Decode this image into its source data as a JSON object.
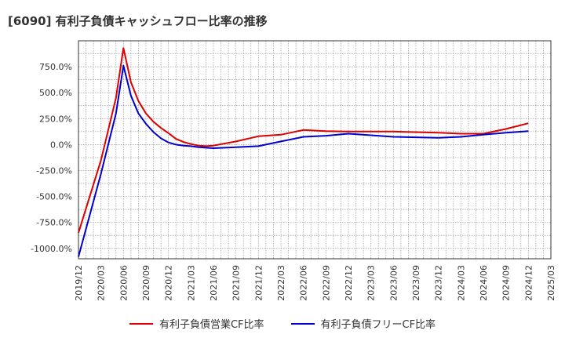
{
  "chart_data": {
    "type": "line",
    "title": "[6090]  有利子負債キャッシュフロー比率の推移",
    "xlabel": "",
    "ylabel": "",
    "ylim": [
      -1100,
      1000
    ],
    "yticks": [
      750,
      500,
      250,
      0,
      -250,
      -500,
      -750,
      -1000
    ],
    "ytick_labels": [
      "750.0%",
      "500.0%",
      "250.0%",
      "0.0%",
      "-250.0%",
      "-500.0%",
      "-750.0%",
      "-1000.0%"
    ],
    "xticks": [
      "2019/12",
      "2020/03",
      "2020/06",
      "2020/09",
      "2020/12",
      "2021/03",
      "2021/06",
      "2021/09",
      "2021/12",
      "2022/03",
      "2022/06",
      "2022/09",
      "2022/12",
      "2023/03",
      "2023/06",
      "2023/09",
      "2023/12",
      "2024/03",
      "2024/06",
      "2024/09",
      "2024/12",
      "2025/03"
    ],
    "grid": true,
    "legend_position": "bottom",
    "series": [
      {
        "name": "有利子負債営業CF比率",
        "color": "#dd0000",
        "x": [
          "2019/12",
          "2020/03",
          "2020/05",
          "2020/06",
          "2020/07",
          "2020/08",
          "2020/09",
          "2020/10",
          "2020/11",
          "2020/12",
          "2021/01",
          "2021/02",
          "2021/03",
          "2021/04",
          "2021/05",
          "2021/06",
          "2021/09",
          "2021/12",
          "2022/03",
          "2022/06",
          "2022/09",
          "2022/12",
          "2023/03",
          "2023/06",
          "2023/09",
          "2023/12",
          "2024/03",
          "2024/06",
          "2024/09",
          "2024/12"
        ],
        "values": [
          -850,
          -150,
          450,
          930,
          600,
          420,
          300,
          220,
          160,
          110,
          55,
          25,
          5,
          -10,
          -15,
          -10,
          30,
          80,
          95,
          140,
          130,
          125,
          125,
          125,
          120,
          115,
          105,
          105,
          150,
          205
        ]
      },
      {
        "name": "有利子負債フリーCF比率",
        "color": "#0000cc",
        "x": [
          "2019/12",
          "2020/03",
          "2020/05",
          "2020/06",
          "2020/07",
          "2020/08",
          "2020/09",
          "2020/10",
          "2020/11",
          "2020/12",
          "2021/01",
          "2021/02",
          "2021/03",
          "2021/04",
          "2021/05",
          "2021/06",
          "2021/09",
          "2021/12",
          "2022/03",
          "2022/06",
          "2022/09",
          "2022/12",
          "2023/03",
          "2023/06",
          "2023/09",
          "2023/12",
          "2024/03",
          "2024/06",
          "2024/09",
          "2024/12"
        ],
        "values": [
          -1080,
          -280,
          300,
          760,
          470,
          300,
          200,
          120,
          60,
          20,
          0,
          -10,
          -15,
          -25,
          -30,
          -35,
          -25,
          -15,
          30,
          75,
          85,
          105,
          90,
          75,
          70,
          65,
          75,
          95,
          115,
          130
        ]
      }
    ]
  }
}
